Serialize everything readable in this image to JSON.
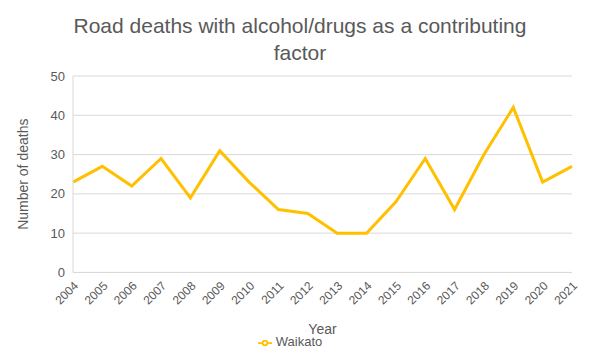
{
  "chart_data": {
    "type": "line",
    "title": "Road deaths with alcohol/drugs as a contributing factor",
    "x_label": "Year",
    "y_label": "Number of deaths",
    "categories": [
      "2004",
      "2005",
      "2006",
      "2007",
      "2008",
      "2009",
      "2010",
      "2011",
      "2012",
      "2013",
      "2014",
      "2015",
      "2016",
      "2017",
      "2018",
      "2019",
      "2020",
      "2021"
    ],
    "series": [
      {
        "name": "Waikato",
        "color": "#ffc000",
        "values": [
          23,
          27,
          22,
          29,
          19,
          31,
          23,
          16,
          15,
          10,
          10,
          18,
          29,
          16,
          30,
          42,
          23,
          27
        ]
      }
    ],
    "ylim": [
      0,
      50
    ],
    "yticks": [
      0,
      10,
      20,
      30,
      40,
      50
    ],
    "grid": true,
    "legend": "bottom"
  }
}
